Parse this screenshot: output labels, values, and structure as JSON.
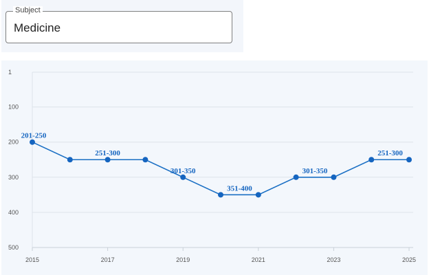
{
  "subject": {
    "legend": "Subject",
    "value": "Medicine"
  },
  "colors": {
    "line": "#1a6fc4",
    "point": "#1565c0",
    "label": "#1565c0",
    "grid": "#dde3ea",
    "tick_text": "#555555"
  },
  "chart_data": {
    "type": "line",
    "title": "",
    "xlabel": "",
    "ylabel": "",
    "y_inverted": true,
    "ylim": [
      1,
      500
    ],
    "xlim": [
      2015,
      2025
    ],
    "y_ticks": [
      "1",
      "100",
      "200",
      "300",
      "400",
      "500"
    ],
    "x_ticks": [
      "2015",
      "2017",
      "2019",
      "2021",
      "2023",
      "2025"
    ],
    "grid": true,
    "series": [
      {
        "x": [
          2015,
          2016,
          2017,
          2018,
          2019,
          2020,
          2021,
          2022,
          2023,
          2024,
          2025
        ],
        "y": [
          200,
          250,
          250,
          250,
          300,
          350,
          350,
          300,
          300,
          250,
          250
        ],
        "bands": [
          "201-250",
          "251-300",
          "251-300",
          "251-300",
          "301-350",
          "351-400",
          "351-400",
          "301-350",
          "301-350",
          "251-300",
          "251-300"
        ]
      }
    ],
    "annotations": [
      {
        "x": 2015,
        "text": "201-250"
      },
      {
        "x": 2017,
        "text": "251-300"
      },
      {
        "x": 2019,
        "text": "301-350"
      },
      {
        "x": 2020.5,
        "text": "351-400"
      },
      {
        "x": 2022.5,
        "text": "301-350"
      },
      {
        "x": 2024.5,
        "text": "251-300"
      }
    ]
  }
}
